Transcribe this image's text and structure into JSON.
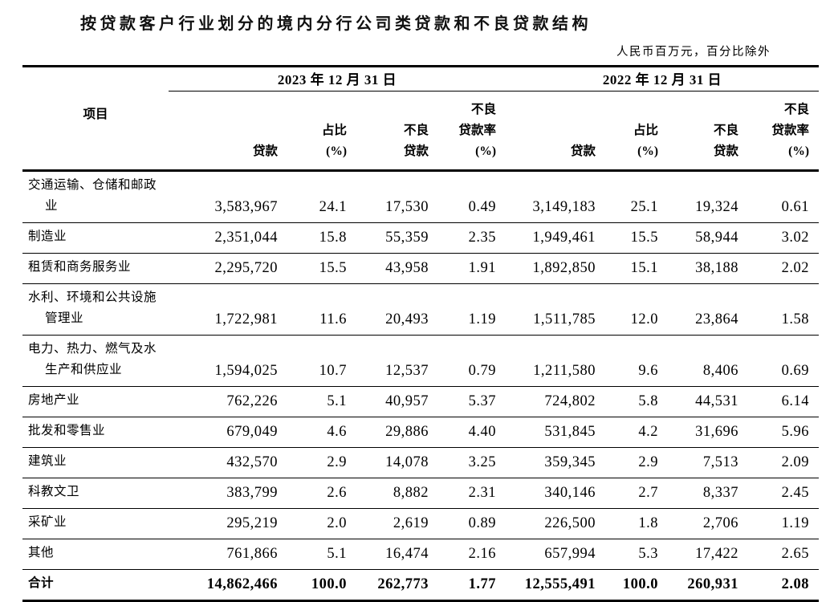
{
  "title": "按贷款客户行业划分的境内分行公司类贷款和不良贷款结构",
  "unit_note": "人民币百万元，百分比除外",
  "table": {
    "item_header": "项目",
    "groups": [
      {
        "date": "2023 年 12 月 31 日"
      },
      {
        "date": "2022 年 12 月 31 日"
      }
    ],
    "col_headers": {
      "loan": "贷款",
      "share_l1": "占比",
      "share_l2": "(%)",
      "npl_l1": "不良",
      "npl_l2": "贷款",
      "ratio_l1": "不良",
      "ratio_l2": "贷款率",
      "ratio_l3": "(%)"
    },
    "rows": [
      {
        "name_lines": [
          "交通运输、仓储和邮政",
          "业"
        ],
        "v2023": [
          "3,583,967",
          "24.1",
          "17,530",
          "0.49"
        ],
        "v2022": [
          "3,149,183",
          "25.1",
          "19,324",
          "0.61"
        ]
      },
      {
        "name_lines": [
          "制造业"
        ],
        "v2023": [
          "2,351,044",
          "15.8",
          "55,359",
          "2.35"
        ],
        "v2022": [
          "1,949,461",
          "15.5",
          "58,944",
          "3.02"
        ]
      },
      {
        "name_lines": [
          "租赁和商务服务业"
        ],
        "v2023": [
          "2,295,720",
          "15.5",
          "43,958",
          "1.91"
        ],
        "v2022": [
          "1,892,850",
          "15.1",
          "38,188",
          "2.02"
        ]
      },
      {
        "name_lines": [
          "水利、环境和公共设施",
          "管理业"
        ],
        "v2023": [
          "1,722,981",
          "11.6",
          "20,493",
          "1.19"
        ],
        "v2022": [
          "1,511,785",
          "12.0",
          "23,864",
          "1.58"
        ]
      },
      {
        "name_lines": [
          "电力、热力、燃气及水",
          "生产和供应业"
        ],
        "v2023": [
          "1,594,025",
          "10.7",
          "12,537",
          "0.79"
        ],
        "v2022": [
          "1,211,580",
          "9.6",
          "8,406",
          "0.69"
        ]
      },
      {
        "name_lines": [
          "房地产业"
        ],
        "v2023": [
          "762,226",
          "5.1",
          "40,957",
          "5.37"
        ],
        "v2022": [
          "724,802",
          "5.8",
          "44,531",
          "6.14"
        ]
      },
      {
        "name_lines": [
          "批发和零售业"
        ],
        "v2023": [
          "679,049",
          "4.6",
          "29,886",
          "4.40"
        ],
        "v2022": [
          "531,845",
          "4.2",
          "31,696",
          "5.96"
        ]
      },
      {
        "name_lines": [
          "建筑业"
        ],
        "v2023": [
          "432,570",
          "2.9",
          "14,078",
          "3.25"
        ],
        "v2022": [
          "359,345",
          "2.9",
          "7,513",
          "2.09"
        ]
      },
      {
        "name_lines": [
          "科教文卫"
        ],
        "v2023": [
          "383,799",
          "2.6",
          "8,882",
          "2.31"
        ],
        "v2022": [
          "340,146",
          "2.7",
          "8,337",
          "2.45"
        ]
      },
      {
        "name_lines": [
          "采矿业"
        ],
        "v2023": [
          "295,219",
          "2.0",
          "2,619",
          "0.89"
        ],
        "v2022": [
          "226,500",
          "1.8",
          "2,706",
          "1.19"
        ]
      },
      {
        "name_lines": [
          "其他"
        ],
        "v2023": [
          "761,866",
          "5.1",
          "16,474",
          "2.16"
        ],
        "v2022": [
          "657,994",
          "5.3",
          "17,422",
          "2.65"
        ]
      },
      {
        "name_lines": [
          "合计"
        ],
        "total": true,
        "v2023": [
          "14,862,466",
          "100.0",
          "262,773",
          "1.77"
        ],
        "v2022": [
          "12,555,491",
          "100.0",
          "260,931",
          "2.08"
        ]
      }
    ]
  }
}
